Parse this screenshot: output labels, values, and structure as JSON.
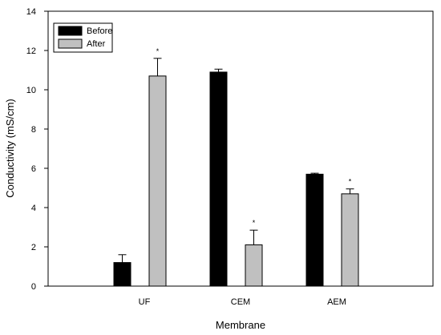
{
  "chart_data": {
    "type": "bar",
    "xlabel": "Membrane",
    "ylabel": "Conductivity (mS/cm)",
    "categories": [
      "UF",
      "CEM",
      "AEM"
    ],
    "ylim": [
      0,
      14
    ],
    "yticks": [
      0,
      2,
      4,
      6,
      8,
      10,
      12,
      14
    ],
    "grid": false,
    "legend_position": "top-left",
    "series": [
      {
        "name": "Before",
        "color": "#000000",
        "values": [
          1.2,
          10.9,
          5.7
        ],
        "errors": [
          0.4,
          0.15,
          0.05
        ]
      },
      {
        "name": "After",
        "color": "#c0c0c0",
        "values": [
          10.7,
          2.1,
          4.7
        ],
        "errors": [
          0.9,
          0.75,
          0.25
        ]
      }
    ],
    "annotations": {
      "marker": "*",
      "series": "After",
      "categories": [
        "UF",
        "CEM",
        "AEM"
      ]
    }
  }
}
